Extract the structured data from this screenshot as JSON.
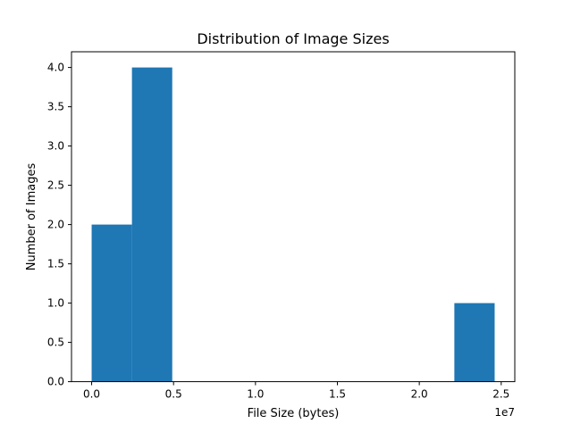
{
  "chart_data": {
    "type": "bar",
    "subtype": "histogram",
    "title": "Distribution of Image Sizes",
    "xlabel": "File Size (bytes)",
    "ylabel": "Number of Images",
    "x_offset_label": "1e7",
    "xlim": [
      -1230000,
      25830000
    ],
    "ylim": [
      0,
      4.2
    ],
    "bins": [
      {
        "x0": 0,
        "x1": 2460000,
        "count": 2
      },
      {
        "x0": 2460000,
        "x1": 4920000,
        "count": 4
      },
      {
        "x0": 4920000,
        "x1": 7380000,
        "count": 0
      },
      {
        "x0": 7380000,
        "x1": 9840000,
        "count": 0
      },
      {
        "x0": 9840000,
        "x1": 12300000,
        "count": 0
      },
      {
        "x0": 12300000,
        "x1": 14760000,
        "count": 0
      },
      {
        "x0": 14760000,
        "x1": 17220000,
        "count": 0
      },
      {
        "x0": 17220000,
        "x1": 19680000,
        "count": 0
      },
      {
        "x0": 19680000,
        "x1": 22140000,
        "count": 0
      },
      {
        "x0": 22140000,
        "x1": 24600000,
        "count": 1
      }
    ],
    "x_ticks": [
      {
        "value": 0,
        "label": "0.0"
      },
      {
        "value": 5000000,
        "label": "0.5"
      },
      {
        "value": 10000000,
        "label": "1.0"
      },
      {
        "value": 15000000,
        "label": "1.5"
      },
      {
        "value": 20000000,
        "label": "2.0"
      },
      {
        "value": 25000000,
        "label": "2.5"
      }
    ],
    "y_ticks": [
      {
        "value": 0,
        "label": "0.0"
      },
      {
        "value": 0.5,
        "label": "0.5"
      },
      {
        "value": 1.0,
        "label": "1.0"
      },
      {
        "value": 1.5,
        "label": "1.5"
      },
      {
        "value": 2.0,
        "label": "2.0"
      },
      {
        "value": 2.5,
        "label": "2.5"
      },
      {
        "value": 3.0,
        "label": "3.0"
      },
      {
        "value": 3.5,
        "label": "3.5"
      },
      {
        "value": 4.0,
        "label": "4.0"
      }
    ],
    "bar_color": "#1f77b4",
    "grid": false,
    "legend": "none"
  }
}
